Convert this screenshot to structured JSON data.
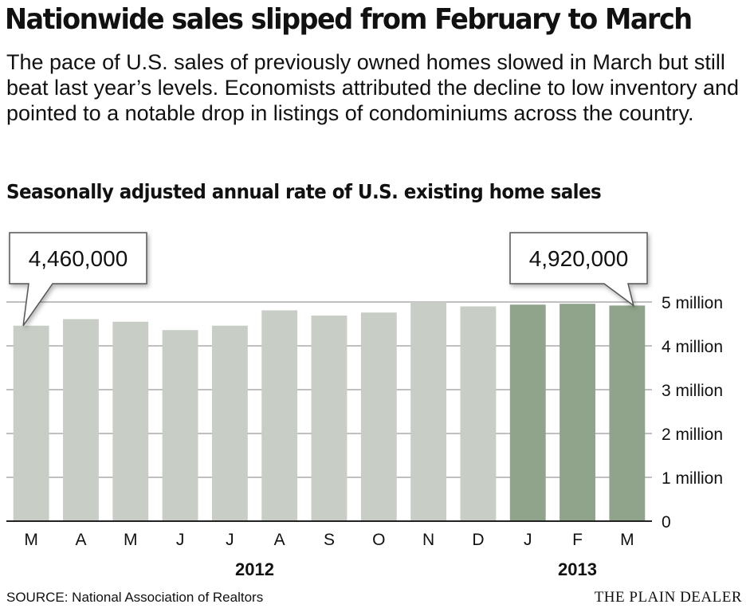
{
  "headline": "Nationwide sales slipped from February to March",
  "dek": "The pace of U.S. sales of previously owned homes slowed in March but still beat last year’s levels. Economists attributed the decline to low inventory and pointed to a notable drop in listings of condominiums across the country.",
  "source": "SOURCE: National Association of Realtors",
  "credit": "THE PLAIN DEALER",
  "colors": {
    "bar_2012": "#c8cdc6",
    "bar_2013": "#8fa48a",
    "gridline": "#9a9a9a",
    "baseline": "#222222"
  },
  "chart_data": {
    "type": "bar",
    "title": "Seasonally adjusted annual rate of U.S. existing home sales",
    "categories": [
      "M",
      "A",
      "M",
      "J",
      "J",
      "A",
      "S",
      "O",
      "N",
      "D",
      "J",
      "F",
      "M"
    ],
    "years": [
      "2012",
      "2013"
    ],
    "year_of_category": [
      "2012",
      "2012",
      "2012",
      "2012",
      "2012",
      "2012",
      "2012",
      "2012",
      "2012",
      "2012",
      "2013",
      "2013",
      "2013"
    ],
    "values": [
      4460000,
      4610000,
      4550000,
      4360000,
      4460000,
      4810000,
      4690000,
      4760000,
      5000000,
      4900000,
      4940000,
      4960000,
      4920000
    ],
    "ylim": [
      0,
      5000000
    ],
    "yticks": [
      0,
      1000000,
      2000000,
      3000000,
      4000000,
      5000000
    ],
    "ytick_labels": [
      "0",
      "1 million",
      "2 million",
      "3 million",
      "4 million",
      "5 million"
    ],
    "grid": true,
    "y_axis_side": "right",
    "callouts": [
      {
        "index": 0,
        "label": "4,460,000"
      },
      {
        "index": 12,
        "label": "4,920,000"
      }
    ]
  }
}
